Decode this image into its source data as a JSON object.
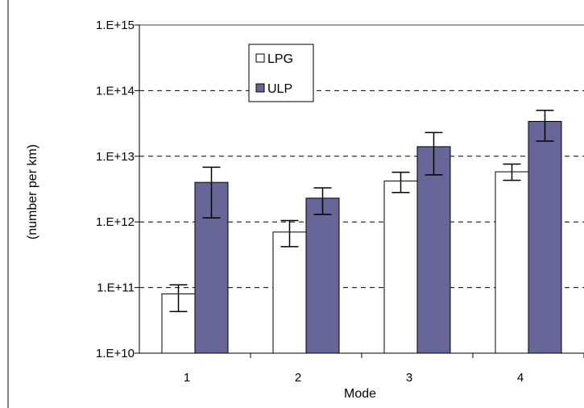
{
  "chart_data": {
    "type": "bar",
    "title": "",
    "xlabel": "Mode",
    "ylabel": "(number per km)",
    "yscale": "log",
    "ylim": [
      10000000000.0,
      1000000000000000.0
    ],
    "y_tick_labels": [
      "1.E+10",
      "1.E+11",
      "1.E+12",
      "1.E+13",
      "1.E+14",
      "1.E+15"
    ],
    "categories": [
      "1",
      "2",
      "3",
      "4"
    ],
    "grid": "horizontal dashed",
    "legend_position": "top-left inside plot",
    "series": [
      {
        "name": "LPG",
        "color": "#ffffff",
        "values": [
          80000000000.0,
          700000000000.0,
          4200000000000.0,
          5800000000000.0
        ],
        "error_low": [
          43000000000.0,
          420000000000.0,
          2800000000000.0,
          4300000000000.0
        ],
        "error_high": [
          110000000000.0,
          1050000000000.0,
          5700000000000.0,
          7600000000000.0
        ]
      },
      {
        "name": "ULP",
        "color": "#666699",
        "values": [
          4000000000000.0,
          2300000000000.0,
          14000000000000.0,
          34000000000000.0
        ],
        "error_low": [
          1150000000000.0,
          1300000000000.0,
          5200000000000.0,
          17000000000000.0
        ],
        "error_high": [
          6800000000000.0,
          3300000000000.0,
          23000000000000.0,
          50000000000000.0
        ]
      }
    ]
  }
}
